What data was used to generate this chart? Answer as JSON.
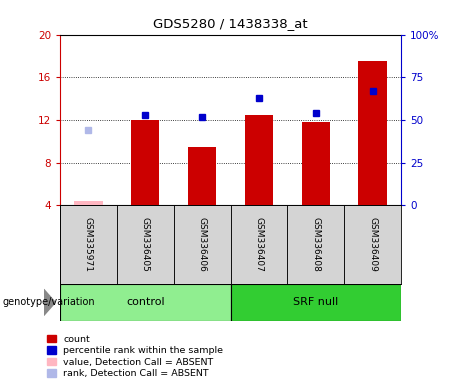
{
  "title": "GDS5280 / 1438338_at",
  "samples": [
    "GSM335971",
    "GSM336405",
    "GSM336406",
    "GSM336407",
    "GSM336408",
    "GSM336409"
  ],
  "bar_values": [
    4.45,
    12.0,
    9.5,
    12.5,
    11.8,
    17.5
  ],
  "bar_absent": [
    true,
    false,
    false,
    false,
    false,
    false
  ],
  "percentile_values": [
    null,
    53.0,
    51.5,
    63.0,
    54.0,
    67.0
  ],
  "percentile_absent": [
    44.0,
    null,
    null,
    null,
    null,
    null
  ],
  "ylim_left": [
    4,
    20
  ],
  "ylim_right": [
    0,
    100
  ],
  "yticks_left": [
    4,
    8,
    12,
    16,
    20
  ],
  "yticks_right": [
    0,
    25,
    50,
    75,
    100
  ],
  "ytick_labels_right": [
    "0",
    "25",
    "50",
    "75",
    "100%"
  ],
  "groups": [
    {
      "label": "control",
      "indices": [
        0,
        1,
        2
      ],
      "color": "#90ee90"
    },
    {
      "label": "SRF null",
      "indices": [
        3,
        4,
        5
      ],
      "color": "#32cd32"
    }
  ],
  "group_label": "genotype/variation",
  "bar_color": "#cc0000",
  "bar_absent_color": "#ffb6c1",
  "percentile_color": "#0000cc",
  "percentile_absent_color": "#b0b8e8",
  "axis_color_left": "#cc0000",
  "axis_color_right": "#0000cc",
  "grid_color": "#000000",
  "plot_bg": "#ffffff",
  "legend_items": [
    {
      "label": "count",
      "color": "#cc0000"
    },
    {
      "label": "percentile rank within the sample",
      "color": "#0000cc"
    },
    {
      "label": "value, Detection Call = ABSENT",
      "color": "#ffb6c1"
    },
    {
      "label": "rank, Detection Call = ABSENT",
      "color": "#b0b8e8"
    }
  ],
  "bar_width": 0.5
}
